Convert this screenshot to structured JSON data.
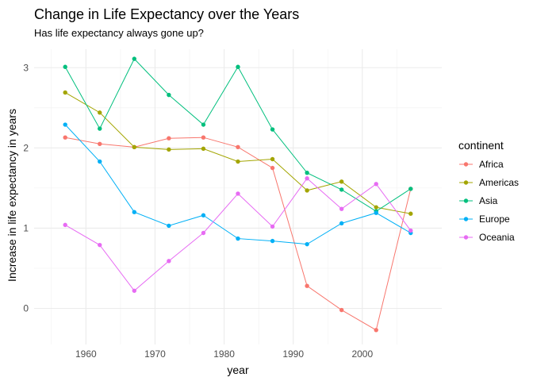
{
  "chart_data": {
    "type": "line",
    "title": "Change in Life Expectancy over the Years",
    "subtitle": "Has life expectancy always gone up?",
    "xlabel": "year",
    "ylabel": "Increase in life expectancy in years",
    "x": [
      1957,
      1962,
      1967,
      1972,
      1977,
      1982,
      1987,
      1992,
      1997,
      2002,
      2007
    ],
    "xticks": [
      1960,
      1970,
      1980,
      1990,
      2000
    ],
    "xlim": [
      1952.5,
      2011.5
    ],
    "yticks": [
      0,
      1,
      2,
      3
    ],
    "ylim": [
      -0.45,
      3.23
    ],
    "grid": true,
    "legend": {
      "title": "continent",
      "position": "right"
    },
    "series": [
      {
        "name": "Africa",
        "color": "#F8766D",
        "values": [
          2.13,
          2.05,
          2.01,
          2.12,
          2.13,
          2.01,
          1.75,
          0.28,
          -0.02,
          -0.27,
          1.49
        ]
      },
      {
        "name": "Americas",
        "color": "#A3A500",
        "values": [
          2.69,
          2.44,
          2.01,
          1.98,
          1.99,
          1.83,
          1.86,
          1.47,
          1.58,
          1.26,
          1.18
        ]
      },
      {
        "name": "Asia",
        "color": "#00BF7D",
        "values": [
          3.01,
          2.24,
          3.11,
          2.66,
          2.29,
          3.01,
          2.23,
          1.69,
          1.48,
          1.21,
          1.49
        ]
      },
      {
        "name": "Europe",
        "color": "#00B0F6",
        "values": [
          2.29,
          1.83,
          1.2,
          1.03,
          1.16,
          0.87,
          0.84,
          0.8,
          1.06,
          1.19,
          0.94
        ]
      },
      {
        "name": "Oceania",
        "color": "#E76BF3",
        "values": [
          1.04,
          0.79,
          0.22,
          0.59,
          0.94,
          1.43,
          1.02,
          1.62,
          1.24,
          1.55,
          0.97
        ]
      }
    ]
  }
}
